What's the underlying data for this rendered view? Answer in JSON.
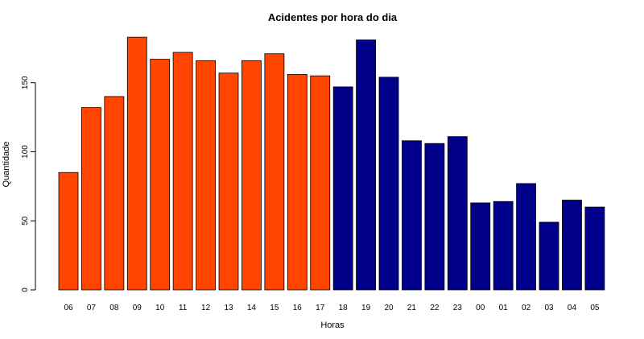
{
  "chart_data": {
    "type": "bar",
    "title": "Acidentes por hora do dia",
    "xlabel": "Horas",
    "ylabel": "Quantidade",
    "ylim": [
      0,
      190
    ],
    "yticks": [
      0,
      50,
      100,
      150
    ],
    "grid": false,
    "categories": [
      "06",
      "07",
      "08",
      "09",
      "10",
      "11",
      "12",
      "13",
      "14",
      "15",
      "16",
      "17",
      "18",
      "19",
      "20",
      "21",
      "22",
      "23",
      "00",
      "01",
      "02",
      "03",
      "04",
      "05"
    ],
    "values": [
      85,
      132,
      140,
      183,
      167,
      172,
      166,
      157,
      166,
      171,
      156,
      155,
      147,
      181,
      154,
      108,
      106,
      111,
      63,
      64,
      77,
      49,
      65,
      60
    ],
    "colors": [
      "#FF4500",
      "#FF4500",
      "#FF4500",
      "#FF4500",
      "#FF4500",
      "#FF4500",
      "#FF4500",
      "#FF4500",
      "#FF4500",
      "#FF4500",
      "#FF4500",
      "#FF4500",
      "#00008B",
      "#00008B",
      "#00008B",
      "#00008B",
      "#00008B",
      "#00008B",
      "#00008B",
      "#00008B",
      "#00008B",
      "#00008B",
      "#00008B",
      "#00008B"
    ]
  }
}
